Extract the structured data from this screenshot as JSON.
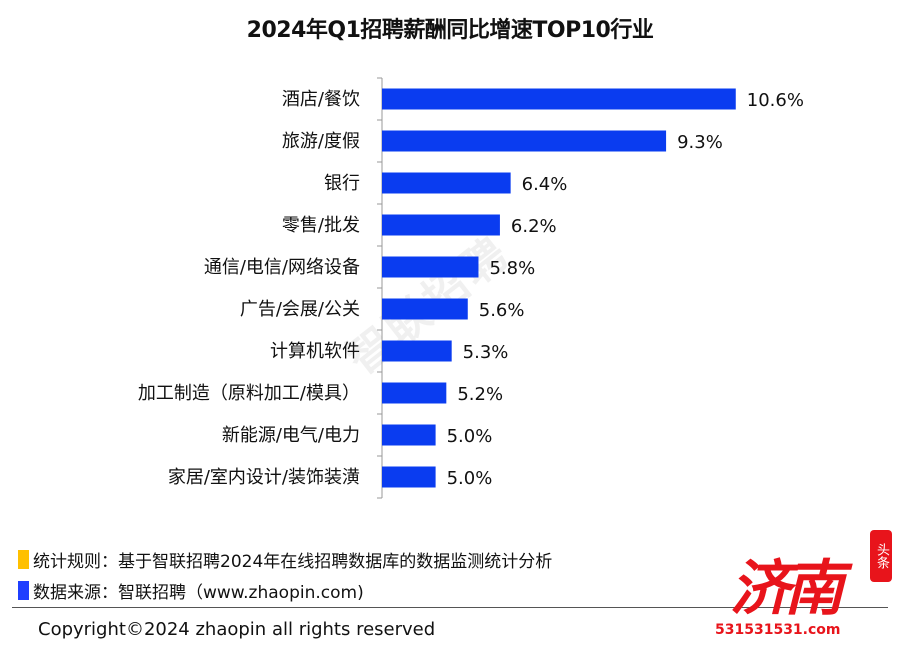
{
  "chart_data": {
    "type": "bar",
    "orientation": "horizontal",
    "title": "2024年Q1招聘薪酬同比增速TOP10行业",
    "categories": [
      "酒店/餐饮",
      "旅游/度假",
      "银行",
      "零售/批发",
      "通信/电信/网络设备",
      "广告/会展/公关",
      "计算机软件",
      "加工制造（原料加工/模具）",
      "新能源/电气/电力",
      "家居/室内设计/装饰装潢"
    ],
    "values": [
      10.6,
      9.3,
      6.4,
      6.2,
      5.8,
      5.6,
      5.3,
      5.2,
      5.0,
      5.0
    ],
    "data_labels": [
      "10.6%",
      "9.3%",
      "6.4%",
      "6.2%",
      "5.8%",
      "5.6%",
      "5.3%",
      "5.2%",
      "5.0%",
      "5.0%"
    ],
    "xlim": [
      4.0,
      10.6
    ],
    "grid": false,
    "bar_color": "#0a3cf0"
  },
  "watermark": "智联招聘",
  "notes": [
    {
      "text": "统计规则：基于智联招聘2024年在线招聘数据库的数据监测统计分析",
      "color": "#ffc000"
    },
    {
      "text": "数据来源：智联招聘（www.zhaopin.com)",
      "color": "#1f3fff"
    }
  ],
  "copyright": "Copyright©2024 zhaopin all rights reserved",
  "logo": {
    "text": "济南",
    "badge": "头条",
    "url": "531531531.com",
    "color": "#e8141b"
  }
}
